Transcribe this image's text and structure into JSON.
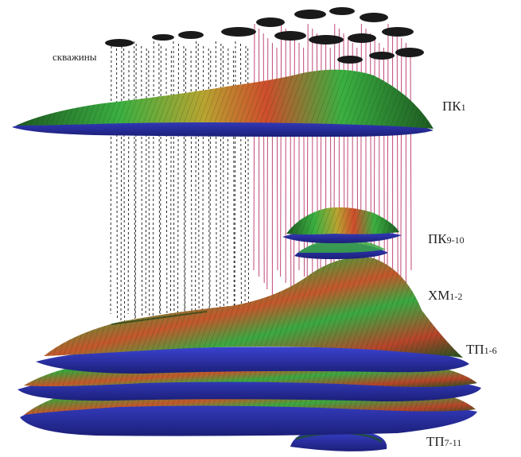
{
  "labels": {
    "wells": "скважины",
    "pk1": {
      "main": "ПК",
      "sub": "1"
    },
    "pk910": {
      "main": "ПК",
      "sub": "9-10"
    },
    "hm12": {
      "main": "ХМ",
      "sub": "1-2"
    },
    "tp16": {
      "main": "ТП",
      "sub": "1-6"
    },
    "tp711": {
      "main": "ТП",
      "sub": "7-11"
    }
  },
  "colors": {
    "surface_green": "#2fae3a",
    "surface_dark_green": "#1f6b22",
    "surface_red": "#c2402a",
    "surface_orange": "#d88a2a",
    "base_blue": "#2a2fa8",
    "well_black": "#2a2a2a",
    "well_pink": "#c0487a"
  }
}
